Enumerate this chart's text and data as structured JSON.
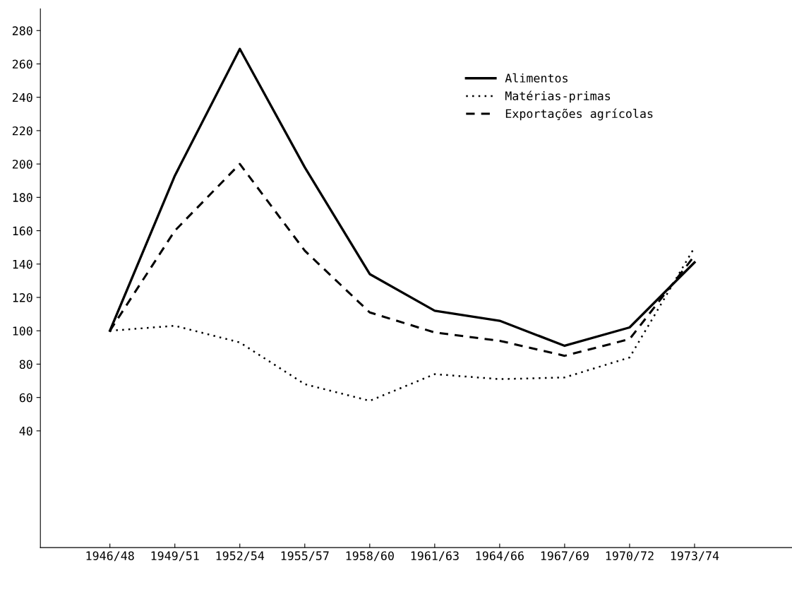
{
  "chart_data": {
    "type": "line",
    "categories": [
      "1946/48",
      "1949/51",
      "1952/54",
      "1955/57",
      "1958/60",
      "1961/63",
      "1964/66",
      "1967/69",
      "1970/72",
      "1973/74"
    ],
    "series": [
      {
        "name": "Alimentos",
        "color": "#000000",
        "line_style": "solid",
        "values": [
          100,
          193,
          269,
          198,
          134,
          112,
          106,
          91,
          102,
          141
        ]
      },
      {
        "name": "Matérias-primas",
        "color": "#000000",
        "line_style": "dotted",
        "values": [
          100,
          103,
          93,
          68,
          58,
          74,
          71,
          72,
          84,
          150
        ]
      },
      {
        "name": "Exportações agrícolas",
        "color": "#000000",
        "line_style": "dashed",
        "values": [
          100,
          160,
          200,
          148,
          111,
          99,
          94,
          85,
          95,
          145
        ]
      }
    ],
    "ylim": [
      -30,
      293
    ],
    "yticks": [
      40,
      60,
      80,
      100,
      120,
      140,
      160,
      180,
      200,
      220,
      240,
      260,
      280
    ],
    "grid": false,
    "legend": "top right",
    "marker": "none"
  }
}
